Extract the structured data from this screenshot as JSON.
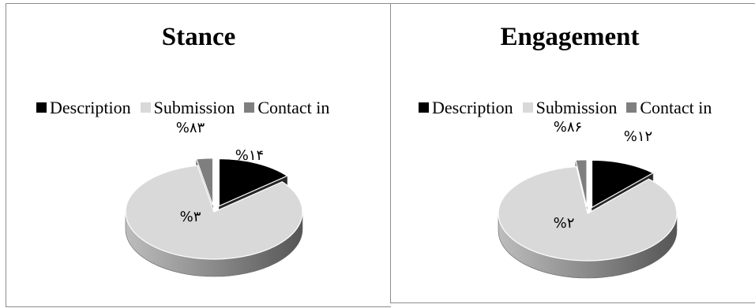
{
  "chart_data": [
    {
      "type": "pie",
      "title": "Stance",
      "legend_position": "top",
      "slices": [
        {
          "name": "Description",
          "value": 14,
          "label": "%۱۴",
          "color": "#000000",
          "exploded": true
        },
        {
          "name": "Submission",
          "value": 83,
          "label": "%۸۳",
          "color": "#d9d9d9",
          "exploded": false
        },
        {
          "name": "Contact in",
          "value": 3,
          "label": "%۳",
          "color": "#7f7f7f",
          "exploded": true
        }
      ]
    },
    {
      "type": "pie",
      "title": "Engagement",
      "legend_position": "top",
      "slices": [
        {
          "name": "Description",
          "value": 12,
          "label": "%۱۲",
          "color": "#000000",
          "exploded": true
        },
        {
          "name": "Submission",
          "value": 86,
          "label": "%۸۶",
          "color": "#d9d9d9",
          "exploded": false
        },
        {
          "name": "Contact in",
          "value": 2,
          "label": "%۲",
          "color": "#7f7f7f",
          "exploded": true
        }
      ]
    }
  ]
}
